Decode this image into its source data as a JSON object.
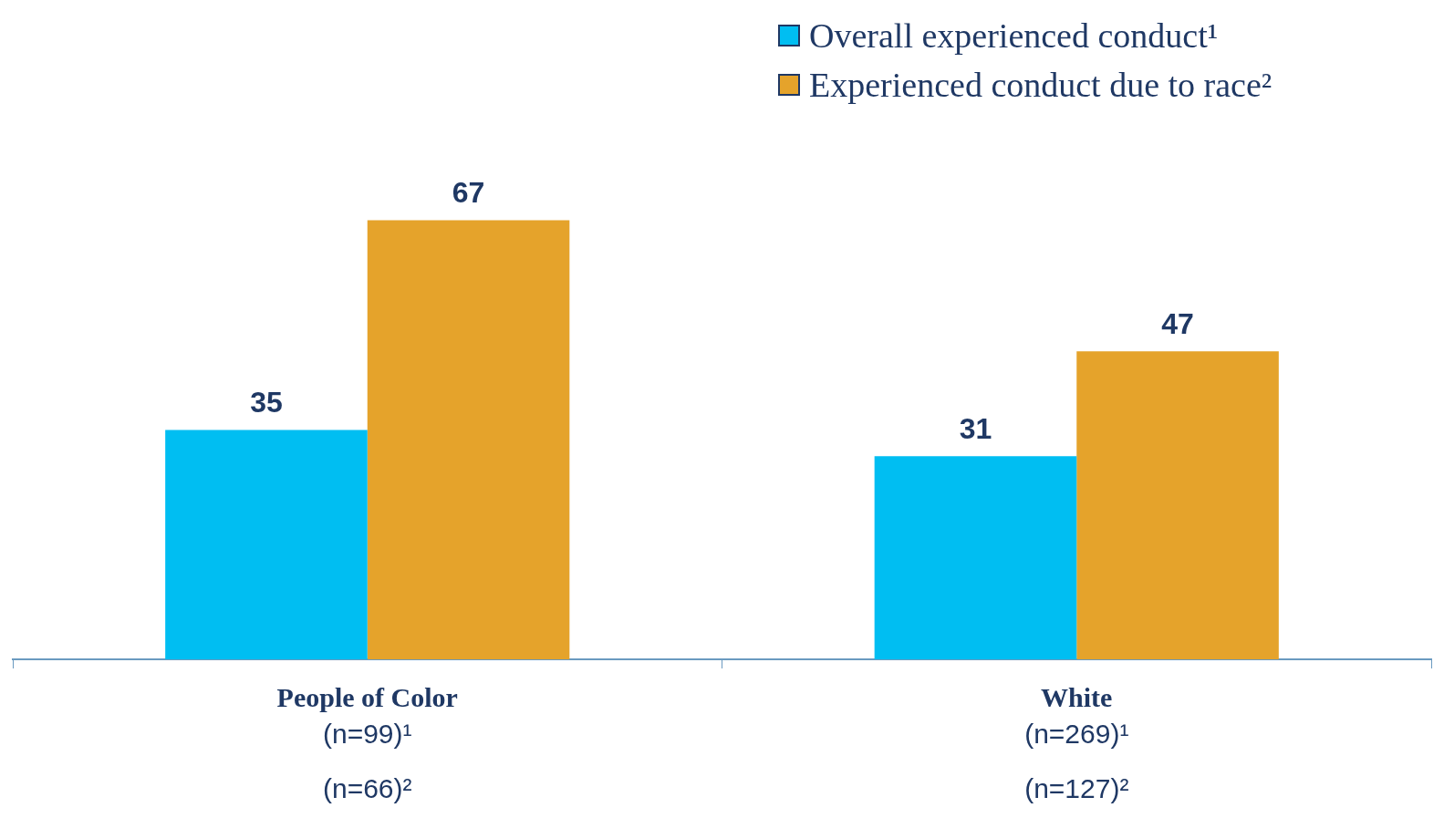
{
  "chart_data": {
    "type": "bar",
    "categories": [
      "People of Color\n(n=99)¹\n(n=66)²",
      "White\n(n=269)¹\n(n=127)²"
    ],
    "series": [
      {
        "name": "Overall experienced conduct¹",
        "color": "#00bef2",
        "values": [
          35,
          31
        ]
      },
      {
        "name": "Experienced conduct due to race²",
        "color": "#e5a32b",
        "values": [
          67,
          47
        ]
      }
    ],
    "data_labels": true,
    "legend": "top right"
  }
}
